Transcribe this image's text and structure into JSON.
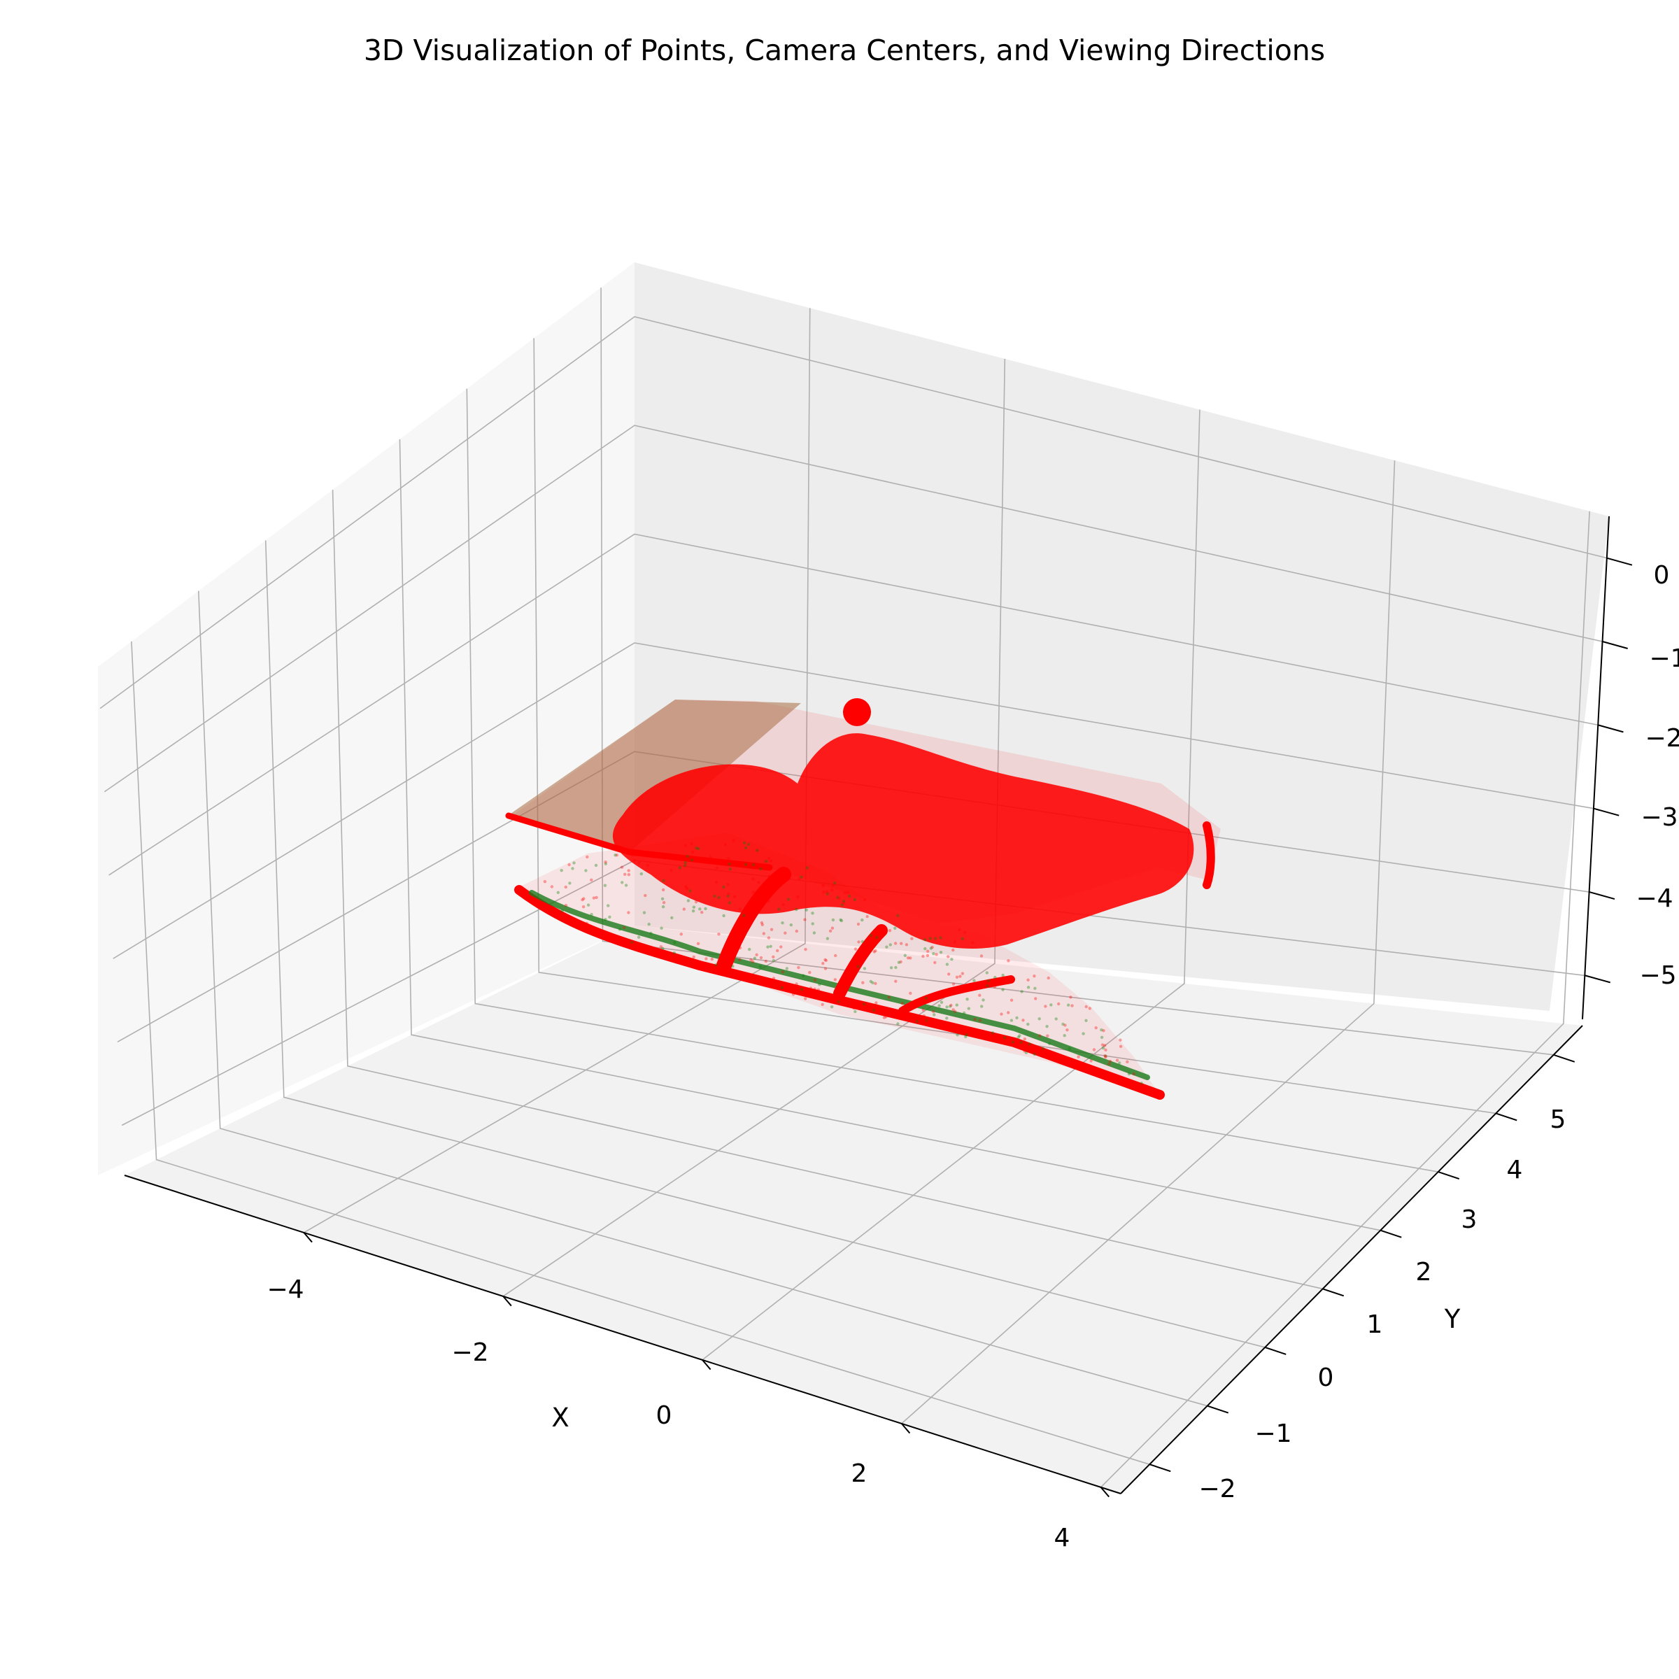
{
  "chart_data": {
    "type": "scatter",
    "projection": "3d",
    "title": "3D Visualization of Points, Camera Centers, and Viewing Directions",
    "xlabel": "X",
    "ylabel": "Y",
    "zlabel": "",
    "x_ticks": [
      "−4",
      "−2",
      "0",
      "2",
      "4"
    ],
    "y_ticks": [
      "−2",
      "−1",
      "0",
      "1",
      "2",
      "3",
      "4",
      "5"
    ],
    "z_ticks": [
      "−5",
      "−4",
      "−3",
      "−2",
      "−1",
      "0"
    ],
    "xlim": [
      -5.8,
      4.2
    ],
    "ylim": [
      -2.5,
      5.5
    ],
    "zlim": [
      -5.6,
      0.5
    ],
    "grid": true,
    "colors": {
      "points": "#ff0000",
      "viewing_directions": "#008000",
      "camera_center": "#ff0000",
      "pane": "#f2f2f2",
      "grid": "#b0b0b0"
    }
  }
}
